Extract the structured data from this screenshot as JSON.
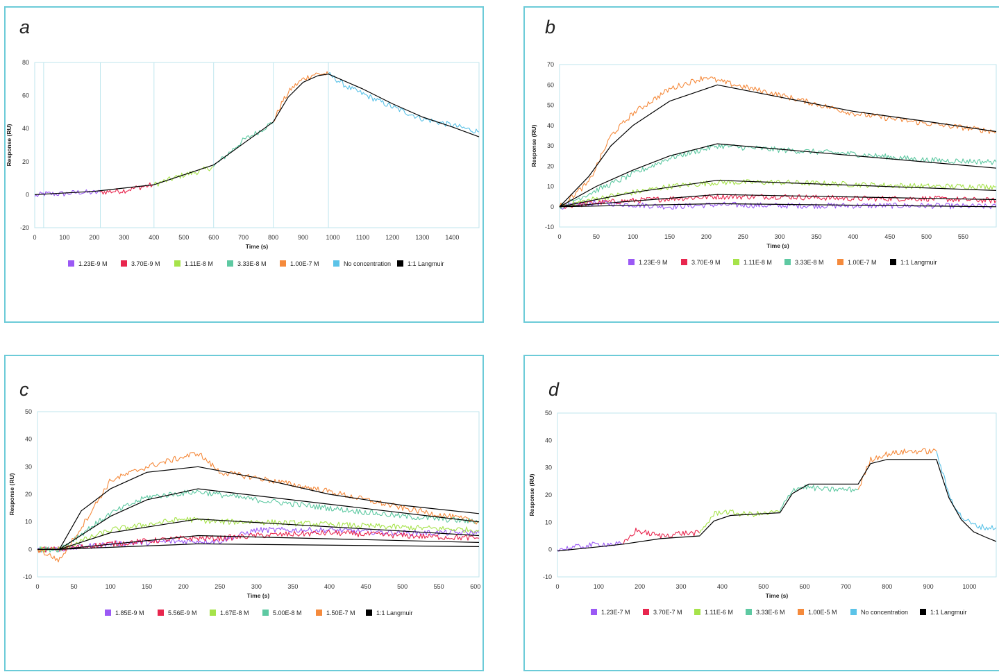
{
  "chart_data": [
    {
      "panel": "a",
      "type": "line",
      "xlabel": "Time (s)",
      "ylabel": "Response (RU)",
      "xlim": [
        0,
        1490
      ],
      "ylim": [
        -20,
        80
      ],
      "xticks": [
        0,
        100,
        200,
        300,
        400,
        500,
        600,
        700,
        800,
        900,
        1000,
        1100,
        1200,
        1300,
        1400
      ],
      "yticks": [
        -20,
        0,
        20,
        40,
        60,
        80
      ],
      "grid": false,
      "vlines": [
        30,
        220,
        400,
        600,
        800,
        985
      ],
      "legend_position": "bottom",
      "series": [
        {
          "name": "1.23E-9 M",
          "color": "#9b59f5",
          "x": [
            0,
            30,
            100,
            150,
            200,
            220
          ],
          "values": [
            -1,
            0.5,
            0.5,
            1.5,
            1.2,
            1.5
          ]
        },
        {
          "name": "3.70E-9 M",
          "color": "#e8264e",
          "x": [
            220,
            260,
            300,
            350,
            400
          ],
          "values": [
            1.5,
            2,
            2.5,
            4.5,
            6
          ]
        },
        {
          "name": "1.11E-8 M",
          "color": "#a6e34a",
          "x": [
            400,
            450,
            500,
            550,
            600
          ],
          "values": [
            6,
            9,
            12,
            14,
            17
          ]
        },
        {
          "name": "3.33E-8 M",
          "color": "#5ec9a2",
          "x": [
            600,
            650,
            700,
            750,
            800
          ],
          "values": [
            17,
            25,
            33,
            38,
            44
          ]
        },
        {
          "name": "1.00E-7 M",
          "color": "#f58a3c",
          "x": [
            800,
            830,
            860,
            900,
            940,
            985
          ],
          "values": [
            44,
            56,
            64,
            70,
            73,
            73
          ]
        },
        {
          "name": "No concentration",
          "color": "#5bc3e8",
          "x": [
            985,
            1050,
            1100,
            1200,
            1300,
            1400,
            1490
          ],
          "values": [
            73,
            65,
            61,
            53,
            46,
            42,
            38
          ]
        },
        {
          "name": "1:1 Langmuir",
          "color": "#000000",
          "x": [
            0,
            200,
            400,
            600,
            800,
            850,
            900,
            950,
            985,
            1100,
            1200,
            1300,
            1400,
            1490
          ],
          "values": [
            0,
            2,
            6,
            18,
            44,
            59,
            68,
            72,
            73,
            64,
            55,
            47,
            41,
            35
          ]
        }
      ]
    },
    {
      "panel": "b",
      "type": "line",
      "xlabel": "Time (s)",
      "ylabel": "Response (RU)",
      "xlim": [
        0,
        595
      ],
      "ylim": [
        -10,
        70
      ],
      "xticks": [
        0,
        50,
        100,
        150,
        200,
        250,
        300,
        350,
        400,
        450,
        500,
        550
      ],
      "yticks": [
        -10,
        0,
        10,
        20,
        30,
        40,
        50,
        60,
        70
      ],
      "grid": false,
      "legend_position": "bottom",
      "series": [
        {
          "name": "1.23E-9 M",
          "color": "#9b59f5",
          "x": [
            0,
            50,
            100,
            150,
            215,
            300,
            400,
            500,
            595
          ],
          "values": [
            0,
            2,
            1,
            0,
            1,
            0.5,
            0.5,
            0.5,
            0
          ]
        },
        {
          "name": "3.70E-9 M",
          "color": "#e8264e",
          "x": [
            0,
            50,
            100,
            150,
            215,
            300,
            400,
            500,
            595
          ],
          "values": [
            0,
            2,
            3,
            4,
            5,
            5,
            4,
            4,
            3
          ]
        },
        {
          "name": "1.11E-8 M",
          "color": "#a6e34a",
          "x": [
            0,
            50,
            100,
            150,
            215,
            300,
            400,
            500,
            595
          ],
          "values": [
            0,
            4,
            7,
            10,
            12,
            12,
            11,
            10,
            10
          ]
        },
        {
          "name": "3.33E-8 M",
          "color": "#5ec9a2",
          "x": [
            0,
            50,
            100,
            150,
            215,
            300,
            400,
            500,
            595
          ],
          "values": [
            0,
            8,
            16,
            24,
            30,
            28,
            26,
            23,
            22
          ]
        },
        {
          "name": "1.00E-7 M",
          "color": "#f58a3c",
          "x": [
            0,
            40,
            70,
            100,
            150,
            200,
            215,
            300,
            400,
            500,
            595
          ],
          "values": [
            0,
            12,
            35,
            46,
            58,
            64,
            62,
            55,
            46,
            41,
            37
          ]
        },
        {
          "name": "1:1 Langmuir",
          "color": "#000000",
          "x": [
            0,
            40,
            70,
            100,
            150,
            215,
            300,
            400,
            500,
            595
          ],
          "values": [
            0,
            15,
            30,
            40,
            52,
            60,
            54,
            47,
            42,
            37
          ]
        },
        {
          "name": "",
          "color": "#000000",
          "x": [
            0,
            50,
            100,
            150,
            215,
            595
          ],
          "values": [
            0,
            10,
            18,
            25,
            31,
            19
          ]
        },
        {
          "name": "",
          "color": "#000000",
          "x": [
            0,
            100,
            215,
            595
          ],
          "values": [
            0,
            7,
            13,
            8
          ]
        },
        {
          "name": "",
          "color": "#000000",
          "x": [
            0,
            215,
            595
          ],
          "values": [
            0,
            6,
            3.5
          ]
        },
        {
          "name": "",
          "color": "#000000",
          "x": [
            0,
            215,
            595
          ],
          "values": [
            0,
            1.5,
            0
          ]
        }
      ]
    },
    {
      "panel": "c",
      "type": "line",
      "xlabel": "Time (s)",
      "ylabel": "Response (RU)",
      "xlim": [
        0,
        605
      ],
      "ylim": [
        -10,
        50
      ],
      "xticks": [
        0,
        50,
        100,
        150,
        200,
        250,
        300,
        350,
        400,
        450,
        500,
        550,
        600
      ],
      "yticks": [
        -10,
        0,
        10,
        20,
        30,
        40,
        50
      ],
      "grid": false,
      "legend_position": "bottom",
      "series": [
        {
          "name": "1.85E-9 M",
          "color": "#9b59f5",
          "x": [
            0,
            30,
            100,
            200,
            250,
            300,
            400,
            500,
            605
          ],
          "values": [
            0,
            0,
            2,
            3,
            3,
            7,
            7,
            6,
            6
          ]
        },
        {
          "name": "5.56E-9 M",
          "color": "#e8264e",
          "x": [
            0,
            30,
            100,
            200,
            250,
            300,
            400,
            500,
            605
          ],
          "values": [
            0,
            0,
            2,
            4,
            4,
            5,
            6,
            5,
            4
          ]
        },
        {
          "name": "1.67E-8 M",
          "color": "#a6e34a",
          "x": [
            0,
            30,
            100,
            200,
            250,
            300,
            400,
            500,
            605
          ],
          "values": [
            0,
            0,
            7,
            11,
            10,
            10,
            9,
            8,
            7
          ]
        },
        {
          "name": "5.00E-8 M",
          "color": "#5ec9a2",
          "x": [
            0,
            30,
            100,
            150,
            220,
            300,
            400,
            500,
            605
          ],
          "values": [
            0,
            0,
            13,
            19,
            21,
            18,
            15,
            12,
            10
          ]
        },
        {
          "name": "1.50E-7 M",
          "color": "#f58a3c",
          "x": [
            0,
            30,
            60,
            100,
            150,
            220,
            250,
            300,
            400,
            500,
            605
          ],
          "values": [
            0,
            -4,
            8,
            25,
            30,
            35,
            28,
            26,
            21,
            15,
            10
          ]
        },
        {
          "name": "1:1 Langmuir",
          "color": "#000000",
          "x": [
            0,
            30,
            60,
            100,
            150,
            220,
            300,
            400,
            500,
            605
          ],
          "values": [
            0,
            0,
            14,
            22,
            28,
            30,
            26,
            20,
            16,
            13
          ]
        },
        {
          "name": "",
          "color": "#000000",
          "x": [
            0,
            30,
            100,
            150,
            220,
            605
          ],
          "values": [
            0,
            0,
            12,
            18,
            22,
            10
          ]
        },
        {
          "name": "",
          "color": "#000000",
          "x": [
            0,
            30,
            100,
            220,
            605
          ],
          "values": [
            0,
            0,
            6,
            11,
            5
          ]
        },
        {
          "name": "",
          "color": "#000000",
          "x": [
            0,
            30,
            220,
            605
          ],
          "values": [
            0,
            0,
            5,
            2.5
          ]
        },
        {
          "name": "",
          "color": "#000000",
          "x": [
            0,
            30,
            220,
            605
          ],
          "values": [
            0,
            0,
            2,
            1
          ]
        }
      ]
    },
    {
      "panel": "d",
      "type": "line",
      "xlabel": "Time (s)",
      "ylabel": "Response (RU)",
      "xlim": [
        0,
        1065
      ],
      "ylim": [
        -10,
        50
      ],
      "xticks": [
        0,
        100,
        200,
        300,
        400,
        500,
        600,
        700,
        800,
        900,
        1000
      ],
      "yticks": [
        -10,
        0,
        10,
        20,
        30,
        40,
        50
      ],
      "grid": false,
      "legend_position": "bottom",
      "series": [
        {
          "name": "1.23E-7 M",
          "color": "#9b59f5",
          "x": [
            0,
            50,
            100,
            160
          ],
          "values": [
            0,
            1,
            2,
            2
          ]
        },
        {
          "name": "3.70E-7 M",
          "color": "#e8264e",
          "x": [
            160,
            190,
            250,
            300,
            345
          ],
          "values": [
            2,
            7,
            5,
            6,
            6
          ]
        },
        {
          "name": "1.11E-6 M",
          "color": "#a6e34a",
          "x": [
            345,
            380,
            400,
            450,
            500,
            540
          ],
          "values": [
            6,
            13,
            14,
            13,
            13,
            14
          ]
        },
        {
          "name": "3.33E-6 M",
          "color": "#5ec9a2",
          "x": [
            540,
            570,
            600,
            650,
            700,
            730
          ],
          "values": [
            14,
            22,
            23,
            22,
            22,
            22
          ]
        },
        {
          "name": "1.00E-5 M",
          "color": "#f58a3c",
          "x": [
            730,
            760,
            800,
            850,
            900,
            920
          ],
          "values": [
            22,
            33,
            35,
            36,
            36,
            36
          ]
        },
        {
          "name": "No concentration",
          "color": "#5bc3e8",
          "x": [
            920,
            950,
            980,
            1010,
            1040,
            1065
          ],
          "values": [
            36,
            20,
            12,
            9,
            8,
            8
          ]
        },
        {
          "name": "1:1 Langmuir",
          "color": "#000000",
          "x": [
            0,
            100,
            160,
            250,
            345,
            380,
            420,
            540,
            570,
            610,
            730,
            760,
            800,
            920,
            950,
            980,
            1010,
            1040,
            1065
          ],
          "values": [
            -0.5,
            1,
            2,
            4,
            5,
            10.5,
            12.5,
            13.5,
            20.5,
            24,
            24,
            31.5,
            33,
            33,
            19,
            11,
            6.5,
            4.5,
            3
          ]
        }
      ]
    }
  ]
}
